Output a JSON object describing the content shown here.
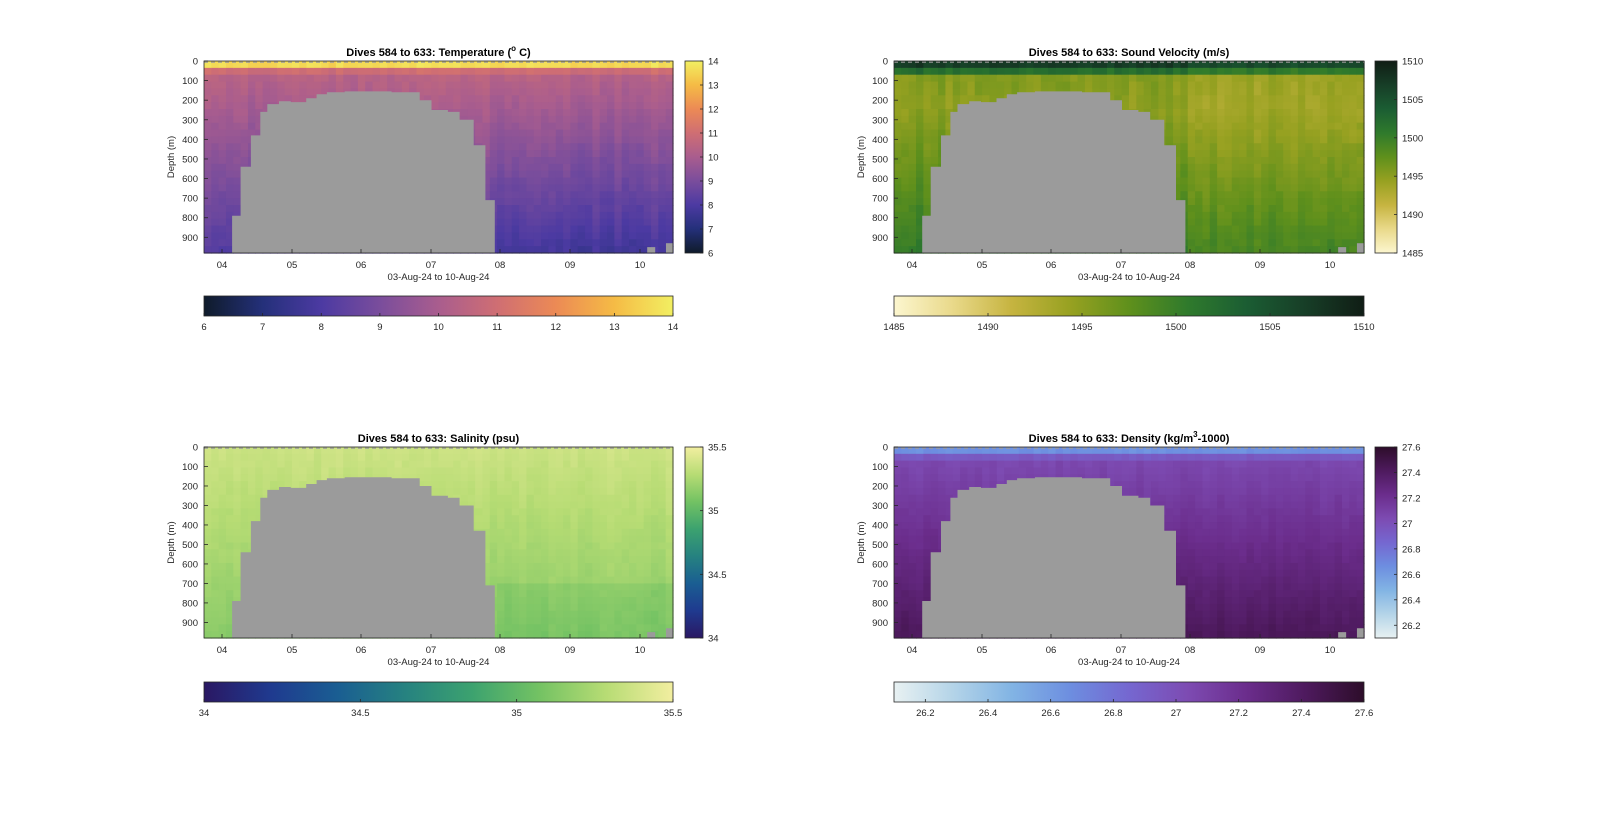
{
  "figure": {
    "background": "#ffffff",
    "axis_color": "#262626",
    "bathymetry_color": "#9b9b9b"
  },
  "chart_data": [
    {
      "type": "heatmap",
      "title_prefix": "Dives 584 to 633: Temperature (",
      "title_sup": "o",
      "title_suffix": " C)",
      "xlabel": "03-Aug-24 to 10-Aug-24",
      "ylabel": "Depth (m)",
      "x_ticks": [
        "04",
        "05",
        "06",
        "07",
        "08",
        "09",
        "10"
      ],
      "y_ticks": [
        "0",
        "100",
        "200",
        "300",
        "400",
        "500",
        "600",
        "700",
        "800",
        "900"
      ],
      "ylim": [
        0,
        980
      ],
      "colorbar_ticks": [
        "6",
        "7",
        "8",
        "9",
        "10",
        "11",
        "12",
        "13",
        "14"
      ],
      "horizontal_colorbar_ticks": [
        "6",
        "7",
        "8",
        "9",
        "10",
        "11",
        "12",
        "13",
        "14"
      ],
      "clim": [
        6,
        14
      ],
      "colormap": [
        "#0f1b2a",
        "#24307a",
        "#4c3aa2",
        "#7a4d9c",
        "#a95d8e",
        "#cf6e73",
        "#ec8a55",
        "#f5bb45",
        "#f2ef62"
      ]
    },
    {
      "type": "heatmap",
      "title_prefix": "Dives 584 to 633: Sound Velocity (m/s)",
      "title_sup": "",
      "title_suffix": "",
      "xlabel": "03-Aug-24 to 10-Aug-24",
      "ylabel": "Depth (m)",
      "x_ticks": [
        "04",
        "05",
        "06",
        "07",
        "08",
        "09",
        "10"
      ],
      "y_ticks": [
        "0",
        "100",
        "200",
        "300",
        "400",
        "500",
        "600",
        "700",
        "800",
        "900"
      ],
      "ylim": [
        0,
        980
      ],
      "colorbar_ticks": [
        "1485",
        "1490",
        "1495",
        "1500",
        "1505",
        "1510"
      ],
      "horizontal_colorbar_ticks": [
        "1485",
        "1490",
        "1495",
        "1500",
        "1505",
        "1510"
      ],
      "clim": [
        1485,
        1510
      ],
      "colormap": [
        "#fcf6cf",
        "#e9d98a",
        "#c6b440",
        "#97a121",
        "#5f901c",
        "#2f7a2c",
        "#1b5d33",
        "#173e27",
        "#101d15"
      ]
    },
    {
      "type": "heatmap",
      "title_prefix": "Dives 584 to 633: Salinity (psu)",
      "title_sup": "",
      "title_suffix": "",
      "xlabel": "03-Aug-24 to 10-Aug-24",
      "ylabel": "Depth (m)",
      "x_ticks": [
        "04",
        "05",
        "06",
        "07",
        "08",
        "09",
        "10"
      ],
      "y_ticks": [
        "0",
        "100",
        "200",
        "300",
        "400",
        "500",
        "600",
        "700",
        "800",
        "900"
      ],
      "ylim": [
        0,
        980
      ],
      "colorbar_ticks": [
        "34",
        "34.5",
        "35",
        "35.5"
      ],
      "horizontal_colorbar_ticks": [
        "34",
        "34.5",
        "35",
        "35.5"
      ],
      "clim": [
        34,
        35.5
      ],
      "colormap": [
        "#2a1863",
        "#1f3a8f",
        "#1a5e92",
        "#268280",
        "#3ca26f",
        "#73c263",
        "#b7dc74",
        "#f2eea0"
      ]
    },
    {
      "type": "heatmap",
      "title_prefix": "Dives 584 to 633: Density (kg/m",
      "title_sup": "3",
      "title_suffix": "-1000)",
      "xlabel": "03-Aug-24 to 10-Aug-24",
      "ylabel": "Depth (m)",
      "x_ticks": [
        "04",
        "05",
        "06",
        "07",
        "08",
        "09",
        "10"
      ],
      "y_ticks": [
        "0",
        "100",
        "200",
        "300",
        "400",
        "500",
        "600",
        "700",
        "800",
        "900"
      ],
      "ylim": [
        0,
        980
      ],
      "colorbar_ticks": [
        "26.2",
        "26.4",
        "26.6",
        "26.8",
        "27",
        "27.2",
        "27.4",
        "27.6"
      ],
      "horizontal_colorbar_ticks": [
        "26.2",
        "26.4",
        "26.6",
        "26.8",
        "27",
        "27.2",
        "27.4",
        "27.6"
      ],
      "clim": [
        26.1,
        27.6
      ],
      "colormap": [
        "#e8f1f2",
        "#b4d4e8",
        "#82b4e4",
        "#6d8ee0",
        "#7567d0",
        "#7d4bb2",
        "#6b2d8c",
        "#4e1a5e",
        "#2d0d2a"
      ]
    }
  ]
}
